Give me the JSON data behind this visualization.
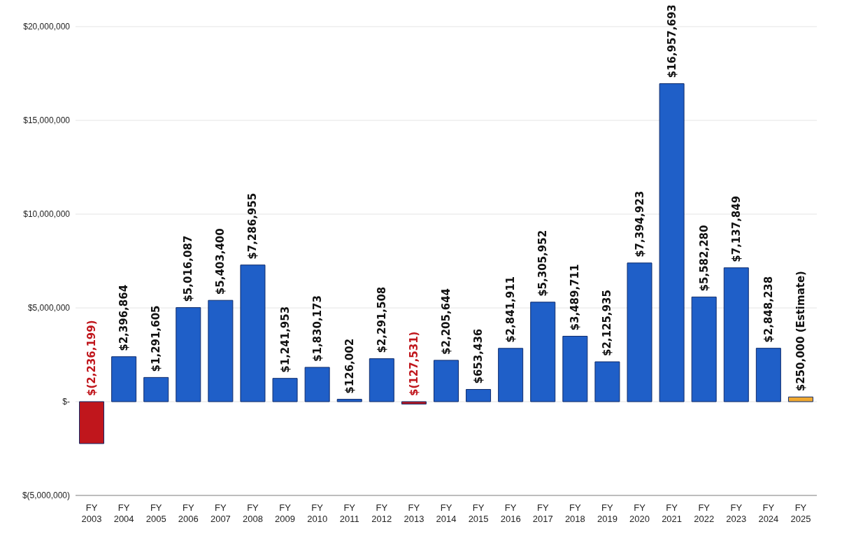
{
  "chart_data": {
    "type": "bar",
    "categories": [
      "FY 2003",
      "FY 2004",
      "FY 2005",
      "FY 2006",
      "FY 2007",
      "FY 2008",
      "FY 2009",
      "FY 2010",
      "FY 2011",
      "FY 2012",
      "FY 2013",
      "FY 2014",
      "FY 2015",
      "FY 2016",
      "FY 2017",
      "FY 2018",
      "FY 2019",
      "FY 2020",
      "FY 2021",
      "FY 2022",
      "FY 2023",
      "FY 2024",
      "FY 2025"
    ],
    "values": [
      -2236199,
      2396864,
      1291605,
      5016087,
      5403400,
      7286955,
      1241953,
      1830173,
      126002,
      2291508,
      -127531,
      2205644,
      653436,
      2841911,
      5305952,
      3489711,
      2125935,
      7394923,
      16957693,
      5582280,
      7137849,
      2848238,
      250000
    ],
    "colors": [
      "#c0161c",
      "#1f5fc8",
      "#1f5fc8",
      "#1f5fc8",
      "#1f5fc8",
      "#1f5fc8",
      "#1f5fc8",
      "#1f5fc8",
      "#1f5fc8",
      "#1f5fc8",
      "#c0161c",
      "#1f5fc8",
      "#1f5fc8",
      "#1f5fc8",
      "#1f5fc8",
      "#1f5fc8",
      "#1f5fc8",
      "#1f5fc8",
      "#1f5fc8",
      "#1f5fc8",
      "#1f5fc8",
      "#1f5fc8",
      "#f0a830"
    ],
    "value_labels": [
      "$(2,236,199)",
      "$2,396,864",
      "$1,291,605",
      "$5,016,087",
      "$5,403,400",
      "$7,286,955",
      "$1,241,953",
      "$1,830,173",
      "$126,002",
      "$2,291,508",
      "$(127,531)",
      "$2,205,644",
      "$653,436",
      "$2,841,911",
      "$5,305,952",
      "$3,489,711",
      "$2,125,935",
      "$7,394,923",
      "$16,957,693",
      "$5,582,280",
      "$7,137,849",
      "$2,848,238",
      "$250,000  (Estimate)"
    ],
    "ylim": [
      -5000000,
      20000000
    ],
    "yticks": [
      {
        "value": -5000000,
        "label": "$(5,000,000)"
      },
      {
        "value": 0,
        "label": "$-"
      },
      {
        "value": 5000000,
        "label": "$5,000,000"
      },
      {
        "value": 10000000,
        "label": "$10,000,000"
      },
      {
        "value": 15000000,
        "label": "$15,000,000"
      },
      {
        "value": 20000000,
        "label": "$20,000,000"
      }
    ],
    "grid": "y"
  }
}
